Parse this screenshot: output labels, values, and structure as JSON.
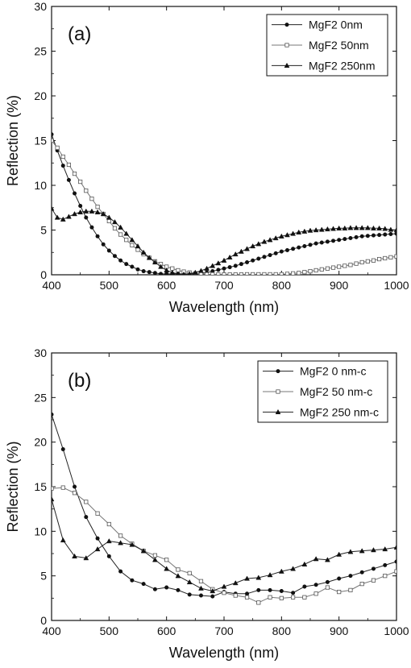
{
  "chart_data": [
    {
      "type": "line",
      "panel_label": "(a)",
      "xlabel": "Wavelength (nm)",
      "ylabel": "Reflection (%)",
      "xlim": [
        400,
        1000
      ],
      "ylim": [
        0,
        30
      ],
      "xticks": [
        400,
        500,
        600,
        700,
        800,
        900,
        1000
      ],
      "yticks": [
        0,
        5,
        10,
        15,
        20,
        25,
        30
      ],
      "legend_position": "top-right",
      "grid": false,
      "series": [
        {
          "name": "MgF2 0nm",
          "marker": "circle-filled",
          "x": [
            400,
            410,
            420,
            430,
            440,
            450,
            460,
            470,
            480,
            490,
            500,
            510,
            520,
            530,
            540,
            550,
            560,
            570,
            580,
            590,
            600,
            610,
            620,
            630,
            640,
            650,
            660,
            670,
            680,
            690,
            700,
            710,
            720,
            730,
            740,
            750,
            760,
            770,
            780,
            790,
            800,
            810,
            820,
            830,
            840,
            850,
            860,
            870,
            880,
            890,
            900,
            910,
            920,
            930,
            940,
            950,
            960,
            970,
            980,
            990,
            1000
          ],
          "y": [
            15.7,
            13.9,
            12.2,
            10.6,
            9.1,
            7.7,
            6.4,
            5.3,
            4.3,
            3.4,
            2.7,
            2.1,
            1.6,
            1.2,
            0.9,
            0.6,
            0.4,
            0.3,
            0.2,
            0.1,
            0.1,
            0.1,
            0.1,
            0.1,
            0.1,
            0.1,
            0.15,
            0.25,
            0.4,
            0.55,
            0.7,
            0.85,
            1.0,
            1.2,
            1.4,
            1.6,
            1.8,
            2.0,
            2.2,
            2.4,
            2.6,
            2.75,
            2.9,
            3.05,
            3.2,
            3.35,
            3.5,
            3.6,
            3.7,
            3.8,
            3.9,
            4.0,
            4.1,
            4.2,
            4.3,
            4.35,
            4.4,
            4.45,
            4.5,
            4.55,
            4.6
          ]
        },
        {
          "name": "MgF2 50nm",
          "marker": "square-open",
          "x": [
            400,
            410,
            420,
            430,
            440,
            450,
            460,
            470,
            480,
            490,
            500,
            510,
            520,
            530,
            540,
            550,
            560,
            570,
            580,
            590,
            600,
            610,
            620,
            630,
            640,
            650,
            660,
            670,
            680,
            690,
            700,
            710,
            720,
            730,
            740,
            750,
            760,
            770,
            780,
            790,
            800,
            810,
            820,
            830,
            840,
            850,
            860,
            870,
            880,
            890,
            900,
            910,
            920,
            930,
            940,
            950,
            960,
            970,
            980,
            990,
            1000
          ],
          "y": [
            15.0,
            14.2,
            13.2,
            12.3,
            11.3,
            10.4,
            9.4,
            8.5,
            7.6,
            6.8,
            6.0,
            5.2,
            4.5,
            3.9,
            3.3,
            2.8,
            2.3,
            1.9,
            1.5,
            1.2,
            0.9,
            0.7,
            0.5,
            0.35,
            0.25,
            0.15,
            0.1,
            0.05,
            0.05,
            0.03,
            0.03,
            0.03,
            0.03,
            0.03,
            0.05,
            0.05,
            0.05,
            0.05,
            0.05,
            0.05,
            0.05,
            0.1,
            0.15,
            0.2,
            0.3,
            0.4,
            0.5,
            0.6,
            0.7,
            0.8,
            0.9,
            1.0,
            1.1,
            1.25,
            1.4,
            1.5,
            1.6,
            1.75,
            1.85,
            1.95,
            2.05
          ]
        },
        {
          "name": "MgF2 250nm",
          "marker": "triangle-filled",
          "x": [
            400,
            410,
            420,
            430,
            440,
            450,
            460,
            470,
            480,
            490,
            500,
            510,
            520,
            530,
            540,
            550,
            560,
            570,
            580,
            590,
            600,
            610,
            620,
            630,
            640,
            650,
            660,
            670,
            680,
            690,
            700,
            710,
            720,
            730,
            740,
            750,
            760,
            770,
            780,
            790,
            800,
            810,
            820,
            830,
            840,
            850,
            860,
            870,
            880,
            890,
            900,
            910,
            920,
            930,
            940,
            950,
            960,
            970,
            980,
            990,
            1000
          ],
          "y": [
            7.4,
            6.4,
            6.2,
            6.5,
            6.8,
            7.0,
            7.1,
            7.1,
            7.0,
            6.8,
            6.4,
            5.9,
            5.3,
            4.6,
            3.9,
            3.2,
            2.5,
            1.9,
            1.4,
            0.9,
            0.5,
            0.25,
            0.1,
            0.05,
            0.1,
            0.25,
            0.45,
            0.7,
            1.0,
            1.3,
            1.6,
            1.95,
            2.3,
            2.6,
            2.9,
            3.2,
            3.45,
            3.7,
            3.9,
            4.1,
            4.3,
            4.45,
            4.6,
            4.75,
            4.85,
            4.95,
            5.0,
            5.05,
            5.1,
            5.15,
            5.2,
            5.2,
            5.25,
            5.25,
            5.25,
            5.25,
            5.2,
            5.2,
            5.15,
            5.05,
            5.0
          ]
        }
      ]
    },
    {
      "type": "line",
      "panel_label": "(b)",
      "xlabel": "Wavelength (nm)",
      "ylabel": "Reflection (%)",
      "xlim": [
        400,
        1000
      ],
      "ylim": [
        0,
        30
      ],
      "xticks": [
        400,
        500,
        600,
        700,
        800,
        900,
        1000
      ],
      "yticks": [
        0,
        5,
        10,
        15,
        20,
        25,
        30
      ],
      "legend_position": "top-right",
      "grid": false,
      "series": [
        {
          "name": "MgF2 0 nm-c",
          "marker": "circle-filled",
          "x": [
            400,
            420,
            440,
            460,
            480,
            500,
            520,
            540,
            560,
            580,
            600,
            620,
            640,
            660,
            680,
            700,
            720,
            740,
            760,
            780,
            800,
            820,
            840,
            860,
            880,
            900,
            920,
            940,
            960,
            980,
            1000
          ],
          "y": [
            23.1,
            19.2,
            15.0,
            11.6,
            9.2,
            7.2,
            5.5,
            4.5,
            4.1,
            3.5,
            3.7,
            3.4,
            2.9,
            2.8,
            2.7,
            3.2,
            3.0,
            3.0,
            3.4,
            3.4,
            3.3,
            3.1,
            3.8,
            4.0,
            4.3,
            4.7,
            5.0,
            5.4,
            5.8,
            6.2,
            6.6
          ]
        },
        {
          "name": "MgF2 50 nm-c",
          "marker": "square-open",
          "x": [
            400,
            420,
            440,
            460,
            480,
            500,
            520,
            540,
            560,
            580,
            600,
            620,
            640,
            660,
            680,
            700,
            720,
            740,
            760,
            780,
            800,
            820,
            840,
            860,
            880,
            900,
            920,
            940,
            960,
            980,
            1000
          ],
          "y": [
            14.8,
            14.9,
            14.3,
            13.3,
            12.0,
            10.8,
            9.5,
            8.6,
            7.8,
            7.3,
            6.8,
            5.7,
            5.3,
            4.4,
            3.5,
            3.1,
            2.8,
            2.6,
            2.0,
            2.6,
            2.5,
            2.6,
            2.6,
            3.0,
            3.7,
            3.2,
            3.4,
            4.1,
            4.5,
            5.0,
            5.5
          ]
        },
        {
          "name": "MgF2 250 nm-c",
          "marker": "triangle-filled",
          "x": [
            400,
            420,
            440,
            460,
            480,
            500,
            520,
            540,
            560,
            580,
            600,
            620,
            640,
            660,
            680,
            700,
            720,
            740,
            760,
            780,
            800,
            820,
            840,
            860,
            880,
            900,
            920,
            940,
            960,
            980,
            1000
          ],
          "y": [
            13.6,
            9.0,
            7.2,
            7.0,
            8.0,
            8.9,
            8.7,
            8.5,
            7.8,
            6.8,
            5.8,
            5.0,
            4.3,
            3.6,
            3.3,
            3.8,
            4.2,
            4.7,
            4.8,
            5.1,
            5.5,
            5.8,
            6.3,
            6.9,
            6.8,
            7.4,
            7.7,
            7.8,
            7.9,
            8.0,
            8.2
          ]
        }
      ]
    }
  ]
}
